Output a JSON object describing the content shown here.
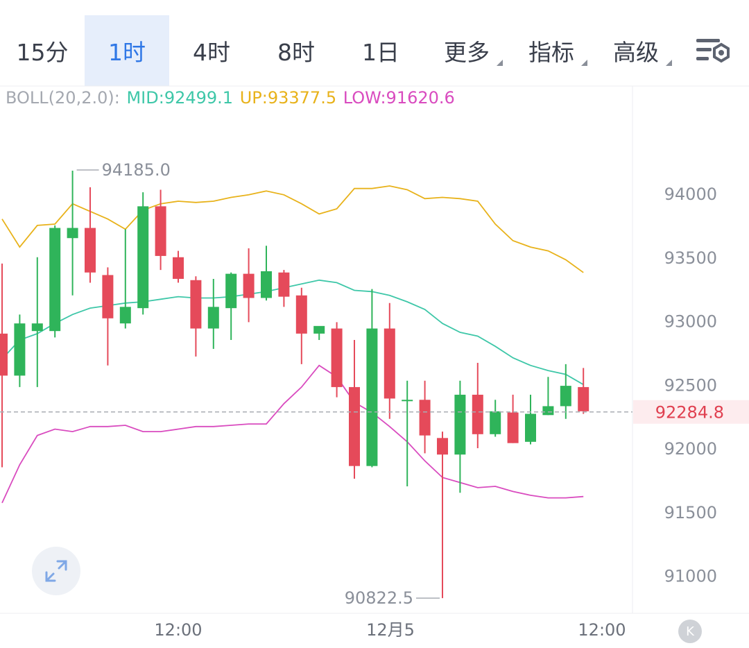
{
  "tabs": [
    {
      "label": "15分",
      "active": false,
      "dropdown": false
    },
    {
      "label": "1时",
      "active": true,
      "dropdown": false
    },
    {
      "label": "4时",
      "active": false,
      "dropdown": false
    },
    {
      "label": "8时",
      "active": false,
      "dropdown": false
    },
    {
      "label": "1日",
      "active": false,
      "dropdown": false
    },
    {
      "label": "更多",
      "active": false,
      "dropdown": true
    },
    {
      "label": "指标",
      "active": false,
      "dropdown": true
    },
    {
      "label": "高级",
      "active": false,
      "dropdown": true
    }
  ],
  "settings_icon": "chart-settings-icon",
  "boll": {
    "prefix": "BOLL(20,2.0):",
    "mid": "MID:92499.1",
    "up": "UP:93377.5",
    "low": "LOW:91620.6"
  },
  "colors": {
    "up_candle": "#2fb45a",
    "down_candle": "#e54a5a",
    "mid_line": "#3ec7a8",
    "upper_line": "#e8b21a",
    "lower_line": "#d94bbf",
    "active_tab": "#2f77e6",
    "current_price": "#e04050"
  },
  "chart_data": {
    "type": "candlestick",
    "title": "",
    "ylim": [
      90800,
      94600
    ],
    "y_ticks": [
      94000,
      93500,
      93000,
      92500,
      92000,
      91500,
      91000
    ],
    "x_ticks": [
      "12:00",
      "12月5",
      "12:00"
    ],
    "current_price": "92284.8",
    "max_label": "94185.0",
    "min_label": "90822.5",
    "candles": [
      {
        "o": 92900,
        "h": 93450,
        "l": 91850,
        "c": 92570
      },
      {
        "o": 92570,
        "h": 93050,
        "l": 92480,
        "c": 92980
      },
      {
        "o": 92920,
        "h": 93500,
        "l": 92480,
        "c": 92980
      },
      {
        "o": 92920,
        "h": 93750,
        "l": 92870,
        "c": 93730
      },
      {
        "o": 93650,
        "h": 94180,
        "l": 93200,
        "c": 93730
      },
      {
        "o": 93730,
        "h": 94050,
        "l": 93300,
        "c": 93380
      },
      {
        "o": 93360,
        "h": 93420,
        "l": 92650,
        "c": 93020
      },
      {
        "o": 92980,
        "h": 93720,
        "l": 92940,
        "c": 93110
      },
      {
        "o": 93100,
        "h": 94010,
        "l": 93050,
        "c": 93900
      },
      {
        "o": 93900,
        "h": 94030,
        "l": 93400,
        "c": 93510
      },
      {
        "o": 93500,
        "h": 93550,
        "l": 93300,
        "c": 93330
      },
      {
        "o": 93320,
        "h": 93350,
        "l": 92720,
        "c": 92940
      },
      {
        "o": 92940,
        "h": 93330,
        "l": 92780,
        "c": 93110
      },
      {
        "o": 93100,
        "h": 93380,
        "l": 92850,
        "c": 93370
      },
      {
        "o": 93370,
        "h": 93570,
        "l": 92990,
        "c": 93180
      },
      {
        "o": 93180,
        "h": 93590,
        "l": 93160,
        "c": 93390
      },
      {
        "o": 93380,
        "h": 93400,
        "l": 93110,
        "c": 93190
      },
      {
        "o": 93200,
        "h": 93260,
        "l": 92660,
        "c": 92900
      },
      {
        "o": 92900,
        "h": 92950,
        "l": 92850,
        "c": 92960
      },
      {
        "o": 92940,
        "h": 92990,
        "l": 92400,
        "c": 92480
      },
      {
        "o": 92480,
        "h": 92850,
        "l": 91760,
        "c": 91860
      },
      {
        "o": 91860,
        "h": 93250,
        "l": 91850,
        "c": 92940
      },
      {
        "o": 92940,
        "h": 93140,
        "l": 92230,
        "c": 92390
      },
      {
        "o": 92380,
        "h": 92530,
        "l": 91700,
        "c": 92380
      },
      {
        "o": 92380,
        "h": 92530,
        "l": 91960,
        "c": 92100
      },
      {
        "o": 92080,
        "h": 92130,
        "l": 90822,
        "c": 91950
      },
      {
        "o": 91950,
        "h": 92530,
        "l": 91650,
        "c": 92420
      },
      {
        "o": 92420,
        "h": 92670,
        "l": 92000,
        "c": 92110
      },
      {
        "o": 92110,
        "h": 92380,
        "l": 92090,
        "c": 92290
      },
      {
        "o": 92280,
        "h": 92420,
        "l": 92040,
        "c": 92040
      },
      {
        "o": 92050,
        "h": 92420,
        "l": 92030,
        "c": 92270
      },
      {
        "o": 92260,
        "h": 92560,
        "l": 92260,
        "c": 92330
      },
      {
        "o": 92330,
        "h": 92660,
        "l": 92230,
        "c": 92490
      },
      {
        "o": 92480,
        "h": 92630,
        "l": 92270,
        "c": 92290
      }
    ],
    "series": [
      {
        "name": "UP",
        "values": [
          93800,
          93580,
          93750,
          93760,
          93920,
          93860,
          93800,
          93720,
          93870,
          93920,
          93940,
          93930,
          93940,
          93970,
          93990,
          94020,
          93990,
          93920,
          93840,
          93880,
          94040,
          94040,
          94060,
          94030,
          93960,
          93970,
          93960,
          93940,
          93760,
          93630,
          93580,
          93550,
          93480,
          93380
        ]
      },
      {
        "name": "MID",
        "values": [
          92700,
          92850,
          92900,
          92980,
          93050,
          93100,
          93120,
          93140,
          93150,
          93170,
          93190,
          93180,
          93180,
          93190,
          93210,
          93230,
          93260,
          93290,
          93320,
          93300,
          93240,
          93230,
          93200,
          93150,
          93090,
          92980,
          92910,
          92880,
          92800,
          92710,
          92650,
          92610,
          92580,
          92500
        ]
      },
      {
        "name": "LOW",
        "values": [
          91570,
          91870,
          92100,
          92150,
          92130,
          92170,
          92170,
          92180,
          92130,
          92130,
          92150,
          92170,
          92170,
          92180,
          92190,
          92190,
          92350,
          92480,
          92650,
          92560,
          92360,
          92280,
          92170,
          92050,
          91900,
          91770,
          91730,
          91690,
          91700,
          91660,
          91630,
          91610,
          91610,
          91620
        ]
      }
    ]
  },
  "controls": {
    "k_button": "K"
  }
}
